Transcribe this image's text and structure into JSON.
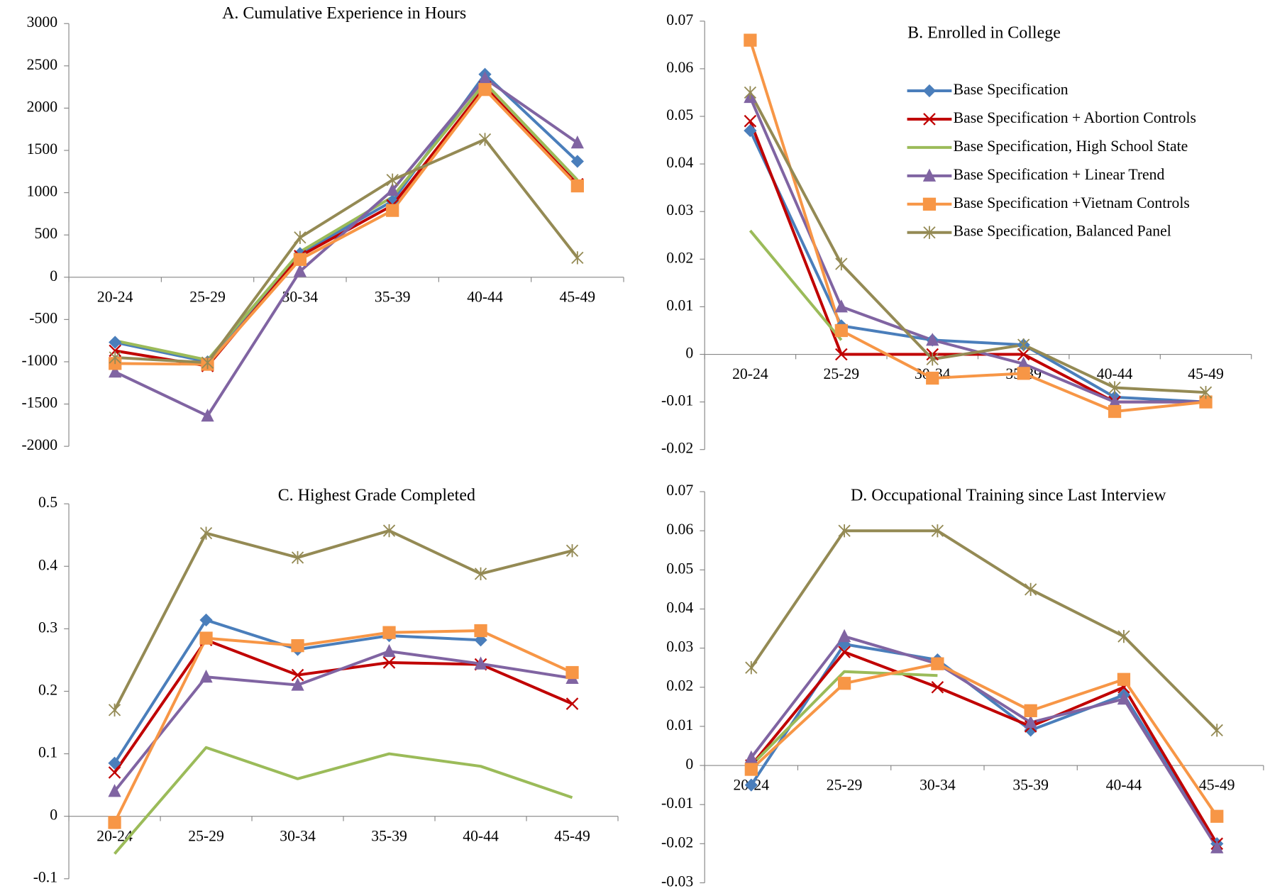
{
  "chart_data": [
    {
      "type": "line",
      "title": "A.  Cumulative Experience in Hours",
      "categories": [
        "20-24",
        "25-29",
        "30-34",
        "35-39",
        "40-44",
        "45-49"
      ],
      "ylim": [
        -2000,
        3000
      ],
      "yticks": [
        -2000,
        -1500,
        -1000,
        -500,
        0,
        500,
        1000,
        1500,
        2000,
        2500,
        3000
      ],
      "series": [
        {
          "color": "#4a7ebb",
          "marker": "diamond",
          "values": [
            -770,
            -1000,
            280,
            900,
            2400,
            1370
          ]
        },
        {
          "color": "#c00000",
          "marker": "x",
          "values": [
            -870,
            -1050,
            250,
            850,
            2250,
            1100
          ]
        },
        {
          "color": "#9bbb59",
          "marker": "none",
          "values": [
            -750,
            -980,
            300,
            950,
            2300,
            1150
          ]
        },
        {
          "color": "#8064a2",
          "marker": "triangle",
          "values": [
            -1120,
            -1640,
            70,
            1030,
            2350,
            1590
          ]
        },
        {
          "color": "#f79646",
          "marker": "square",
          "values": [
            -1020,
            -1030,
            210,
            790,
            2220,
            1080
          ]
        },
        {
          "color": "#948a54",
          "marker": "star",
          "values": [
            -950,
            -1010,
            470,
            1150,
            1630,
            230
          ]
        }
      ]
    },
    {
      "type": "line",
      "title": "B.  Enrolled in College",
      "legend": "upper right",
      "categories": [
        "20-24",
        "25-29",
        "30-34",
        "35-39",
        "40-44",
        "45-49"
      ],
      "ylim": [
        -0.02,
        0.07
      ],
      "yticks": [
        -0.02,
        -0.01,
        0,
        0.01,
        0.02,
        0.03,
        0.04,
        0.05,
        0.06,
        0.07
      ],
      "series": [
        {
          "name": "Base Specification",
          "color": "#4a7ebb",
          "marker": "diamond",
          "values": [
            0.047,
            0.006,
            0.003,
            0.002,
            -0.009,
            -0.01
          ]
        },
        {
          "name": "Base Specification + Abortion Controls",
          "color": "#c00000",
          "marker": "x",
          "values": [
            0.049,
            0,
            0,
            0,
            -0.01,
            -0.01
          ]
        },
        {
          "name": "Base Specification, High School State",
          "color": "#9bbb59",
          "marker": "none",
          "values": [
            0.026,
            0.003,
            null,
            null,
            null,
            null
          ]
        },
        {
          "name": "Base Specification + Linear Trend",
          "color": "#8064a2",
          "marker": "triangle",
          "values": [
            0.054,
            0.01,
            0.003,
            -0.002,
            -0.01,
            -0.01
          ]
        },
        {
          "name": "Base Specification +Vietnam Controls",
          "color": "#f79646",
          "marker": "square",
          "values": [
            0.066,
            0.005,
            -0.005,
            -0.004,
            -0.012,
            -0.01
          ]
        },
        {
          "name": "Base Specification, Balanced Panel",
          "color": "#948a54",
          "marker": "star",
          "values": [
            0.055,
            0.019,
            -0.001,
            0.002,
            -0.007,
            -0.008
          ]
        }
      ]
    },
    {
      "type": "line",
      "title": "C.  Highest Grade Completed",
      "categories": [
        "20-24",
        "25-29",
        "30-34",
        "35-39",
        "40-44",
        "45-49"
      ],
      "ylim": [
        -0.1,
        0.5
      ],
      "yticks": [
        -0.1,
        0,
        0.1,
        0.2,
        0.3,
        0.4,
        0.5
      ],
      "series": [
        {
          "color": "#4a7ebb",
          "marker": "diamond",
          "values": [
            0.085,
            0.314,
            0.267,
            0.289,
            0.282,
            null
          ]
        },
        {
          "color": "#c00000",
          "marker": "x",
          "values": [
            0.07,
            0.282,
            0.226,
            0.246,
            0.243,
            0.18
          ]
        },
        {
          "color": "#9bbb59",
          "marker": "none",
          "values": [
            -0.06,
            0.11,
            0.06,
            0.1,
            0.08,
            0.03
          ]
        },
        {
          "color": "#8064a2",
          "marker": "triangle",
          "values": [
            0.04,
            0.223,
            0.21,
            0.264,
            0.244,
            0.221
          ]
        },
        {
          "color": "#f79646",
          "marker": "square",
          "values": [
            -0.01,
            0.285,
            0.273,
            0.294,
            0.297,
            0.23
          ]
        },
        {
          "color": "#948a54",
          "marker": "star",
          "values": [
            0.17,
            0.453,
            0.414,
            0.457,
            0.388,
            0.425
          ]
        }
      ]
    },
    {
      "type": "line",
      "title": "D.  Occupational Training since Last Interview",
      "categories": [
        "20-24",
        "25-29",
        "30-34",
        "35-39",
        "40-44",
        "45-49"
      ],
      "ylim": [
        -0.03,
        0.07
      ],
      "yticks": [
        -0.03,
        -0.02,
        -0.01,
        0,
        0.01,
        0.02,
        0.03,
        0.04,
        0.05,
        0.06,
        0.07
      ],
      "series": [
        {
          "color": "#4a7ebb",
          "marker": "diamond",
          "values": [
            -0.005,
            0.031,
            0.027,
            0.009,
            0.018,
            -0.02
          ]
        },
        {
          "color": "#c00000",
          "marker": "x",
          "values": [
            0,
            0.029,
            0.02,
            0.01,
            0.02,
            -0.02
          ]
        },
        {
          "color": "#9bbb59",
          "marker": "none",
          "values": [
            0,
            0.024,
            0.023,
            null,
            null,
            null
          ]
        },
        {
          "color": "#8064a2",
          "marker": "triangle",
          "values": [
            0.002,
            0.033,
            0.026,
            0.011,
            0.017,
            -0.021
          ]
        },
        {
          "color": "#f79646",
          "marker": "square",
          "values": [
            -0.001,
            0.021,
            0.026,
            0.014,
            0.022,
            -0.013
          ]
        },
        {
          "color": "#948a54",
          "marker": "star",
          "values": [
            0.025,
            0.06,
            0.06,
            0.045,
            0.033,
            0.009
          ]
        }
      ]
    }
  ]
}
